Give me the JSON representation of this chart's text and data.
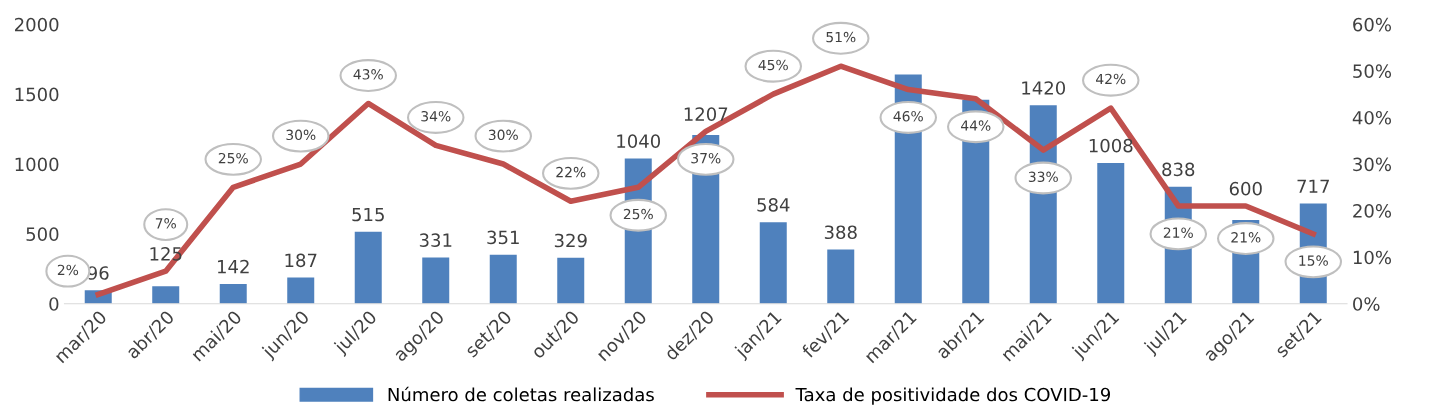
{
  "chart_data": {
    "type": "bar",
    "categories": [
      "mar/20",
      "abr/20",
      "mai/20",
      "jun/20",
      "jul/20",
      "ago/20",
      "set/20",
      "out/20",
      "nov/20",
      "dez/20",
      "jan/21",
      "fev/21",
      "mar/21",
      "abr/21",
      "mai/21",
      "jun/21",
      "jul/21",
      "ago/21",
      "set/21"
    ],
    "series": [
      {
        "name": "Número de coletas realizadas",
        "color": "#4f81bd",
        "values": [
          96,
          125,
          142,
          187,
          515,
          331,
          351,
          329,
          1040,
          1207,
          584,
          388,
          1640,
          1460,
          1420,
          1008,
          838,
          600,
          717
        ],
        "value_labels": [
          "96",
          "125",
          "142",
          "187",
          "515",
          "331",
          "351",
          "329",
          "1040",
          "1207",
          "584",
          "388",
          null,
          null,
          "1420",
          "1008",
          "838",
          "600",
          "717"
        ]
      },
      {
        "name": "Taxa de positividade dos COVID-19",
        "type": "line",
        "axis": "y2",
        "color": "#c0504d",
        "values": [
          2,
          7,
          25,
          30,
          43,
          34,
          30,
          22,
          25,
          37,
          45,
          51,
          46,
          44,
          33,
          42,
          21,
          21,
          15
        ],
        "value_labels": [
          "2%",
          "7%",
          "25%",
          "30%",
          "43%",
          "34%",
          "30%",
          "22%",
          "25%",
          "37%",
          "45%",
          "51%",
          "46%",
          "44%",
          "33%",
          "42%",
          "21%",
          "21%",
          "15%"
        ]
      }
    ],
    "ylim": [
      0,
      2000
    ],
    "yticks": [
      0,
      500,
      1000,
      1500,
      2000
    ],
    "y2lim": [
      0,
      60
    ],
    "y2ticks": [
      {
        "value": 0,
        "label": "0%"
      },
      {
        "value": 10,
        "label": "10%"
      },
      {
        "value": 20,
        "label": "20%"
      },
      {
        "value": 30,
        "label": "30%"
      },
      {
        "value": 40,
        "label": "40%"
      },
      {
        "value": 50,
        "label": "50%"
      },
      {
        "value": 60,
        "label": "60%"
      }
    ],
    "legend": "bottom",
    "grid": false,
    "marker": "none",
    "line_style": "solid"
  }
}
